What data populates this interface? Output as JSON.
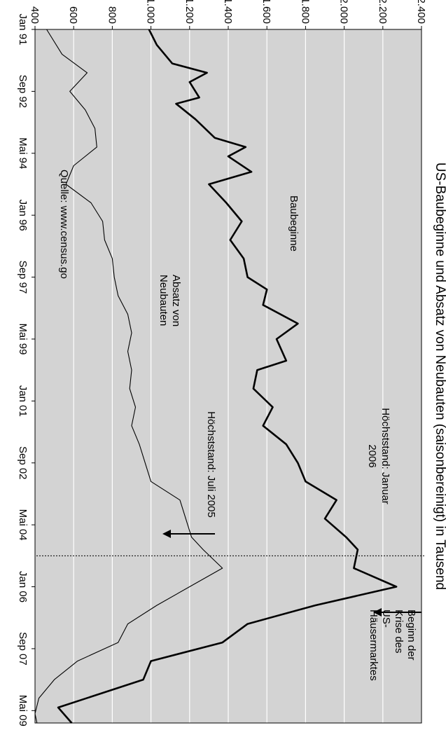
{
  "chart_data": {
    "type": "line",
    "title": "US-Baubeginne und Absatz von Neubauten (saisonbereinigt) in Tausend",
    "xlabel": "",
    "ylabel": "",
    "ylim": [
      400,
      2400
    ],
    "xlim": [
      "1991-01",
      "2009-09"
    ],
    "grid": true,
    "orientation": "rotated 90° clockwise",
    "x_ticks": [
      "Jan 91",
      "Sep 92",
      "Mai 94",
      "Jan 96",
      "Sep 97",
      "Mai 99",
      "Jan 01",
      "Sep 02",
      "Mai 04",
      "Jan 06",
      "Sep 07",
      "Mai 09"
    ],
    "y_ticks": [
      "400",
      "600",
      "800",
      "1.000",
      "1.200",
      "1.400",
      "1.600",
      "1.800",
      "2.000",
      "2.200",
      "2.400"
    ],
    "series": [
      {
        "name": "Baubeginne",
        "color": "#000000",
        "values": [
          [
            "1991-01",
            990
          ],
          [
            "1991-06",
            1030
          ],
          [
            "1991-12",
            1110
          ],
          [
            "1992-03",
            1290
          ],
          [
            "1992-06",
            1200
          ],
          [
            "1992-11",
            1250
          ],
          [
            "1993-01",
            1130
          ],
          [
            "1993-06",
            1230
          ],
          [
            "1993-12",
            1330
          ],
          [
            "1994-03",
            1490
          ],
          [
            "1994-06",
            1400
          ],
          [
            "1994-11",
            1520
          ],
          [
            "1995-03",
            1300
          ],
          [
            "1995-09",
            1390
          ],
          [
            "1996-03",
            1470
          ],
          [
            "1996-09",
            1410
          ],
          [
            "1997-03",
            1480
          ],
          [
            "1997-09",
            1500
          ],
          [
            "1998-01",
            1600
          ],
          [
            "1998-06",
            1580
          ],
          [
            "1998-12",
            1760
          ],
          [
            "1999-05",
            1650
          ],
          [
            "1999-12",
            1700
          ],
          [
            "2000-03",
            1550
          ],
          [
            "2000-09",
            1530
          ],
          [
            "2001-03",
            1630
          ],
          [
            "2001-09",
            1580
          ],
          [
            "2002-03",
            1700
          ],
          [
            "2002-09",
            1760
          ],
          [
            "2003-03",
            1800
          ],
          [
            "2003-09",
            1960
          ],
          [
            "2004-03",
            1900
          ],
          [
            "2004-09",
            2010
          ],
          [
            "2005-01",
            2070
          ],
          [
            "2005-07",
            2050
          ],
          [
            "2006-01",
            2270
          ],
          [
            "2006-07",
            1850
          ],
          [
            "2007-01",
            1500
          ],
          [
            "2007-07",
            1370
          ],
          [
            "2008-01",
            1000
          ],
          [
            "2008-07",
            960
          ],
          [
            "2009-04",
            520
          ],
          [
            "2009-09",
            590
          ]
        ]
      },
      {
        "name": "Absatz von Neubauten",
        "color": "#000000",
        "values": [
          [
            "1991-01",
            460
          ],
          [
            "1991-09",
            540
          ],
          [
            "1992-03",
            670
          ],
          [
            "1992-09",
            580
          ],
          [
            "1993-03",
            660
          ],
          [
            "1993-09",
            710
          ],
          [
            "1994-03",
            720
          ],
          [
            "1994-09",
            600
          ],
          [
            "1995-03",
            560
          ],
          [
            "1995-09",
            690
          ],
          [
            "1996-03",
            750
          ],
          [
            "1996-09",
            760
          ],
          [
            "1997-03",
            800
          ],
          [
            "1997-09",
            810
          ],
          [
            "1998-03",
            830
          ],
          [
            "1998-09",
            880
          ],
          [
            "1999-03",
            900
          ],
          [
            "1999-09",
            880
          ],
          [
            "2000-03",
            900
          ],
          [
            "2000-09",
            890
          ],
          [
            "2001-03",
            920
          ],
          [
            "2001-09",
            900
          ],
          [
            "2002-03",
            940
          ],
          [
            "2002-09",
            970
          ],
          [
            "2003-03",
            1000
          ],
          [
            "2003-09",
            1150
          ],
          [
            "2004-03",
            1180
          ],
          [
            "2004-09",
            1210
          ],
          [
            "2005-01",
            1270
          ],
          [
            "2005-07",
            1370
          ],
          [
            "2006-01",
            1200
          ],
          [
            "2006-07",
            1030
          ],
          [
            "2007-01",
            880
          ],
          [
            "2007-07",
            830
          ],
          [
            "2008-01",
            620
          ],
          [
            "2008-07",
            500
          ],
          [
            "2009-01",
            420
          ],
          [
            "2009-06",
            400
          ],
          [
            "2009-09",
            410
          ]
        ]
      }
    ],
    "marker": {
      "date": "2005-03",
      "style": "dotted vertical line"
    },
    "annotations": {
      "baubeginne_label": "Baubeginne",
      "absatz_label_1": "Absatz von",
      "absatz_label_2": "Neubauten",
      "peak_jan_1": "Höchststand: Januar",
      "peak_jan_2": "2006",
      "peak_jul": "Höchststand: Juli 2005",
      "crisis_1": "Beginn der",
      "crisis_2": "Krise des",
      "crisis_3": "US-",
      "crisis_4": "Häusermarktes",
      "source": "Quelle: www.census.go"
    },
    "colors": {
      "plot_background": "#d3d3d3",
      "grid": "#ffffff"
    }
  }
}
